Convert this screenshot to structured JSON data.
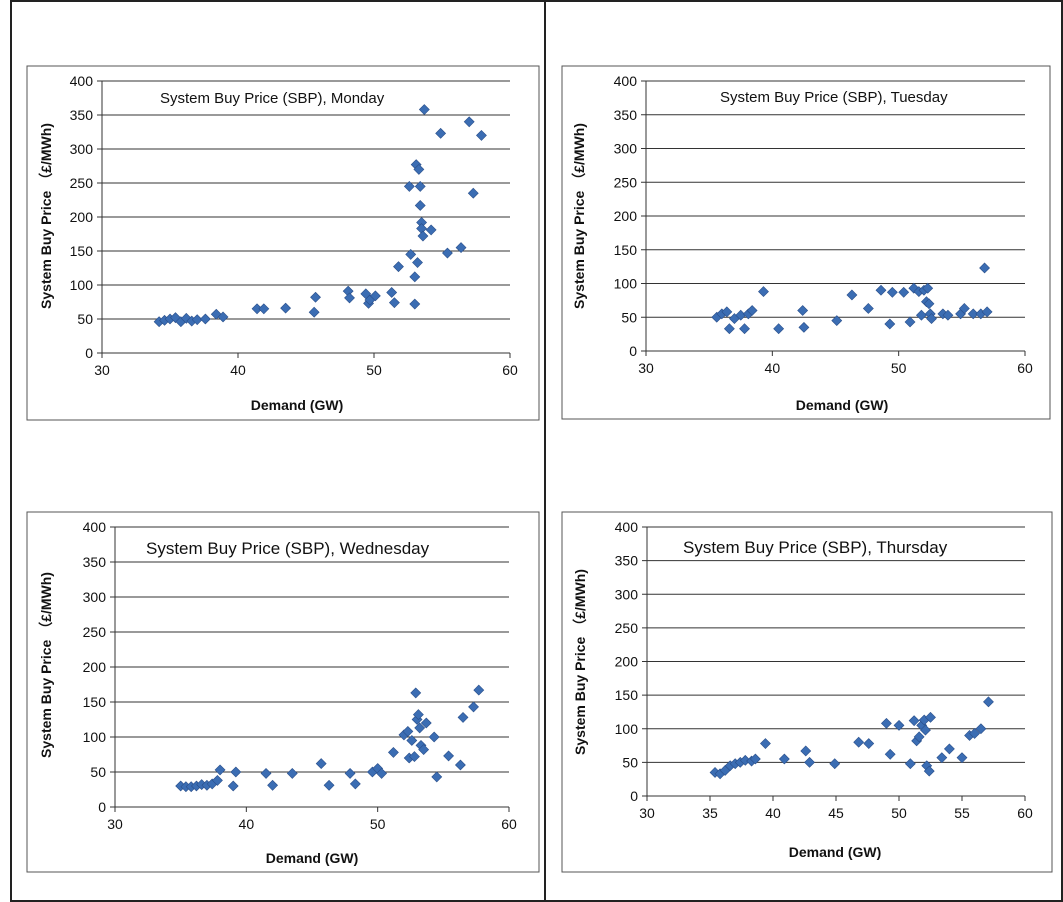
{
  "chart_data": [
    {
      "type": "scatter",
      "title": "System Buy Price (SBP), Monday",
      "xlabel": "Demand (GW)",
      "ylabel": "System Buy Price （£/MWh)",
      "xlim": [
        30,
        60
      ],
      "ylim": [
        0,
        400
      ],
      "xticks": [
        "30",
        "40",
        "50",
        "60"
      ],
      "yticks": [
        "0",
        "50",
        "100",
        "150",
        "200",
        "250",
        "300",
        "350",
        "400"
      ],
      "grid": "horizontal",
      "marker_color": "#3b6db3",
      "points": [
        [
          34.2,
          46
        ],
        [
          34.6,
          48
        ],
        [
          35.0,
          50
        ],
        [
          35.4,
          52
        ],
        [
          35.8,
          46
        ],
        [
          36.2,
          51
        ],
        [
          36.6,
          47
        ],
        [
          37.0,
          49
        ],
        [
          37.6,
          50
        ],
        [
          38.4,
          57
        ],
        [
          38.9,
          53
        ],
        [
          41.4,
          65
        ],
        [
          41.9,
          65
        ],
        [
          43.5,
          66
        ],
        [
          45.6,
          60
        ],
        [
          45.7,
          82
        ],
        [
          48.1,
          91
        ],
        [
          48.2,
          81
        ],
        [
          49.4,
          87
        ],
        [
          49.6,
          73
        ],
        [
          49.7,
          78
        ],
        [
          50.1,
          84
        ],
        [
          51.3,
          89
        ],
        [
          51.5,
          74
        ],
        [
          51.8,
          127
        ],
        [
          52.6,
          245
        ],
        [
          52.7,
          145
        ],
        [
          53.0,
          72
        ],
        [
          53.0,
          112
        ],
        [
          53.1,
          277
        ],
        [
          53.2,
          133
        ],
        [
          53.3,
          270
        ],
        [
          53.4,
          245
        ],
        [
          53.4,
          217
        ],
        [
          53.5,
          192
        ],
        [
          53.5,
          183
        ],
        [
          53.6,
          172
        ],
        [
          53.7,
          358
        ],
        [
          54.2,
          181
        ],
        [
          54.9,
          323
        ],
        [
          55.4,
          147
        ],
        [
          56.4,
          155
        ],
        [
          57.0,
          340
        ],
        [
          57.3,
          235
        ],
        [
          57.9,
          320
        ]
      ]
    },
    {
      "type": "scatter",
      "title": "System Buy Price (SBP), Tuesday",
      "xlabel": "Demand (GW)",
      "ylabel": "System Buy Price （£/MWh)",
      "xlim": [
        30,
        60
      ],
      "ylim": [
        0,
        400
      ],
      "xticks": [
        "30",
        "40",
        "50",
        "60"
      ],
      "yticks": [
        "0",
        "50",
        "100",
        "150",
        "200",
        "250",
        "300",
        "350",
        "400"
      ],
      "grid": "horizontal",
      "marker_color": "#3b6db3",
      "points": [
        [
          35.6,
          50
        ],
        [
          36.0,
          55
        ],
        [
          36.4,
          58
        ],
        [
          36.6,
          33
        ],
        [
          37.0,
          48
        ],
        [
          37.5,
          53
        ],
        [
          37.8,
          33
        ],
        [
          38.1,
          55
        ],
        [
          38.4,
          60
        ],
        [
          39.3,
          88
        ],
        [
          40.5,
          33
        ],
        [
          42.4,
          60
        ],
        [
          42.5,
          35
        ],
        [
          45.1,
          45
        ],
        [
          46.3,
          83
        ],
        [
          47.6,
          63
        ],
        [
          48.6,
          90
        ],
        [
          49.3,
          40
        ],
        [
          49.5,
          87
        ],
        [
          50.4,
          87
        ],
        [
          50.9,
          43
        ],
        [
          51.2,
          93
        ],
        [
          51.6,
          88
        ],
        [
          51.8,
          53
        ],
        [
          52.0,
          90
        ],
        [
          52.2,
          73
        ],
        [
          52.3,
          93
        ],
        [
          52.4,
          70
        ],
        [
          52.5,
          55
        ],
        [
          52.6,
          48
        ],
        [
          53.5,
          55
        ],
        [
          53.9,
          53
        ],
        [
          54.9,
          55
        ],
        [
          55.2,
          63
        ],
        [
          55.9,
          55
        ],
        [
          56.5,
          55
        ],
        [
          56.8,
          123
        ],
        [
          57.0,
          58
        ]
      ]
    },
    {
      "type": "scatter",
      "title": "System Buy Price (SBP), Wednesday",
      "xlabel": "Demand (GW)",
      "ylabel": "System Buy Price （£/MWh)",
      "xlim": [
        30,
        60
      ],
      "ylim": [
        0,
        400
      ],
      "xticks": [
        "30",
        "40",
        "50",
        "60"
      ],
      "yticks": [
        "0",
        "50",
        "100",
        "150",
        "200",
        "250",
        "300",
        "350",
        "400"
      ],
      "grid": "horizontal",
      "marker_color": "#3b6db3",
      "points": [
        [
          35.0,
          30
        ],
        [
          35.4,
          29
        ],
        [
          35.8,
          29
        ],
        [
          36.2,
          30
        ],
        [
          36.6,
          32
        ],
        [
          37.0,
          31
        ],
        [
          37.4,
          33
        ],
        [
          37.8,
          38
        ],
        [
          38.0,
          53
        ],
        [
          39.0,
          30
        ],
        [
          39.2,
          50
        ],
        [
          41.5,
          48
        ],
        [
          42.0,
          31
        ],
        [
          43.5,
          48
        ],
        [
          45.7,
          62
        ],
        [
          46.3,
          31
        ],
        [
          47.9,
          48
        ],
        [
          48.3,
          33
        ],
        [
          49.6,
          50
        ],
        [
          50.0,
          55
        ],
        [
          50.3,
          48
        ],
        [
          51.2,
          78
        ],
        [
          52.0,
          103
        ],
        [
          52.3,
          108
        ],
        [
          52.4,
          70
        ],
        [
          52.6,
          95
        ],
        [
          52.8,
          72
        ],
        [
          52.9,
          163
        ],
        [
          53.0,
          125
        ],
        [
          53.1,
          132
        ],
        [
          53.2,
          113
        ],
        [
          53.3,
          88
        ],
        [
          53.5,
          82
        ],
        [
          53.7,
          120
        ],
        [
          54.3,
          100
        ],
        [
          54.5,
          43
        ],
        [
          55.4,
          73
        ],
        [
          56.3,
          60
        ],
        [
          56.5,
          128
        ],
        [
          57.3,
          143
        ],
        [
          57.7,
          167
        ]
      ]
    },
    {
      "type": "scatter",
      "title": "System Buy Price (SBP), Thursday",
      "xlabel": "Demand (GW)",
      "ylabel": "System Buy Price （£/MWh)",
      "xlim": [
        30,
        60
      ],
      "ylim": [
        0,
        400
      ],
      "xticks": [
        "30",
        "35",
        "40",
        "45",
        "50",
        "55",
        "60"
      ],
      "yticks": [
        "0",
        "50",
        "100",
        "150",
        "200",
        "250",
        "300",
        "350",
        "400"
      ],
      "grid": "horizontal",
      "marker_color": "#3b6db3",
      "points": [
        [
          35.4,
          35
        ],
        [
          35.8,
          33
        ],
        [
          36.2,
          38
        ],
        [
          36.6,
          45
        ],
        [
          37.0,
          48
        ],
        [
          37.4,
          50
        ],
        [
          37.8,
          53
        ],
        [
          38.3,
          52
        ],
        [
          38.6,
          55
        ],
        [
          39.4,
          78
        ],
        [
          40.9,
          55
        ],
        [
          42.6,
          67
        ],
        [
          42.9,
          50
        ],
        [
          44.9,
          48
        ],
        [
          46.8,
          80
        ],
        [
          47.6,
          78
        ],
        [
          49.0,
          108
        ],
        [
          49.3,
          62
        ],
        [
          50.0,
          105
        ],
        [
          50.9,
          48
        ],
        [
          51.2,
          112
        ],
        [
          51.4,
          82
        ],
        [
          51.6,
          88
        ],
        [
          51.8,
          105
        ],
        [
          52.0,
          113
        ],
        [
          52.1,
          98
        ],
        [
          52.2,
          45
        ],
        [
          52.4,
          37
        ],
        [
          52.5,
          117
        ],
        [
          53.4,
          57
        ],
        [
          54.0,
          70
        ],
        [
          55.0,
          57
        ],
        [
          55.6,
          90
        ],
        [
          56.0,
          93
        ],
        [
          56.5,
          100
        ],
        [
          57.1,
          140
        ]
      ]
    }
  ]
}
